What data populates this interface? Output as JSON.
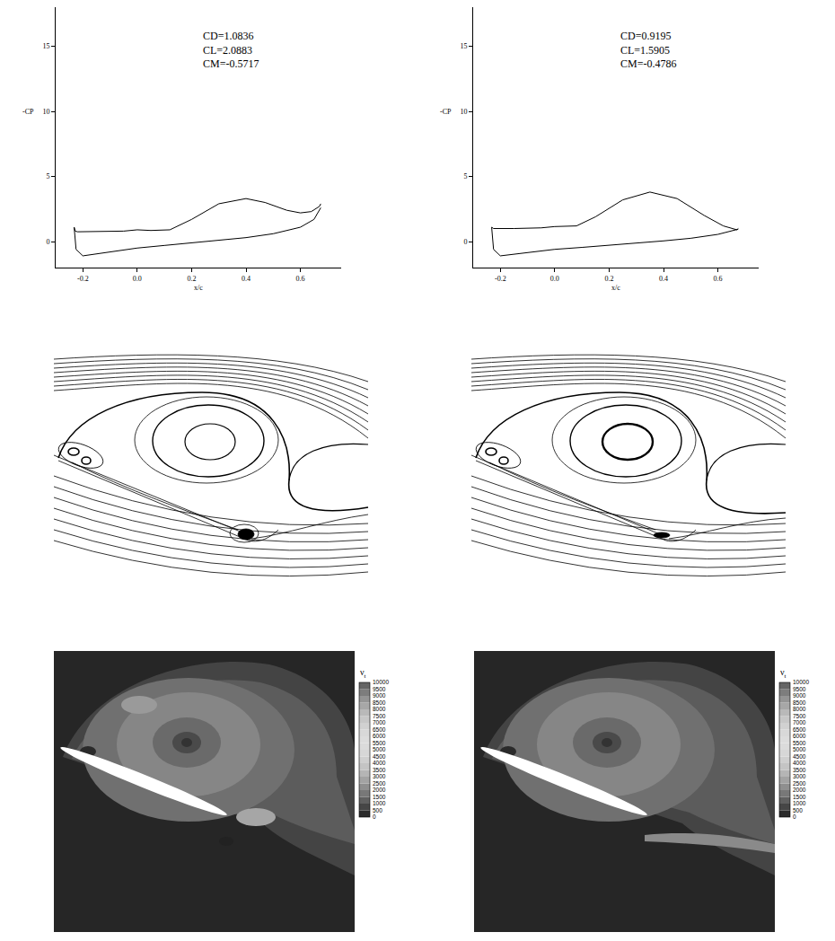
{
  "chart_data": [
    {
      "type": "line",
      "x_label": "x/c",
      "y_label": "-CP",
      "annotations": [
        "CD=1.0836",
        "CL=2.0883",
        "CM=-0.5717"
      ],
      "xlim": [
        -0.3,
        0.75
      ],
      "xticks": [
        -0.2,
        {
          "value": 0,
          "label": "0.0"
        },
        0.2,
        0.4,
        0.6
      ],
      "ylim": [
        -2,
        18
      ],
      "yticks": [
        0,
        5,
        10,
        15
      ],
      "grid": false,
      "series": [
        {
          "color": "#000000",
          "x": [
            -0.232,
            -0.228,
            -0.22,
            -0.15,
            -0.05,
            0.0,
            0.05,
            0.12,
            0.2,
            0.3,
            0.4,
            0.47,
            0.55,
            0.6,
            0.64,
            0.67,
            0.675
          ],
          "values": [
            1.1,
            0.8,
            0.75,
            0.75,
            0.8,
            0.9,
            0.85,
            0.9,
            1.7,
            2.9,
            3.3,
            3.0,
            2.4,
            2.2,
            2.3,
            2.7,
            2.9
          ]
        },
        {
          "color": "#000000",
          "x": [
            -0.232,
            -0.225,
            -0.2,
            -0.1,
            0.0,
            0.1,
            0.2,
            0.3,
            0.4,
            0.5,
            0.6,
            0.65,
            0.675
          ],
          "values": [
            1.1,
            -0.6,
            -1.1,
            -0.8,
            -0.5,
            -0.3,
            -0.1,
            0.1,
            0.3,
            0.6,
            1.1,
            1.7,
            2.6
          ]
        }
      ]
    },
    {
      "type": "line",
      "x_label": "x/c",
      "y_label": "-CP",
      "annotations": [
        "CD=0.9195",
        "CL=1.5905",
        "CM=-0.4786"
      ],
      "xlim": [
        -0.3,
        0.75
      ],
      "xticks": [
        -0.2,
        {
          "value": 0,
          "label": "0.0"
        },
        0.2,
        0.4,
        0.6
      ],
      "ylim": [
        -2,
        18
      ],
      "yticks": [
        0,
        5,
        10,
        15
      ],
      "grid": false,
      "series": [
        {
          "color": "#000000",
          "x": [
            -0.232,
            -0.225,
            -0.15,
            -0.05,
            0.0,
            0.08,
            0.15,
            0.25,
            0.35,
            0.45,
            0.55,
            0.62,
            0.67,
            0.675
          ],
          "values": [
            1.1,
            1.0,
            1.0,
            1.05,
            1.15,
            1.2,
            1.9,
            3.2,
            3.8,
            3.3,
            2.0,
            1.2,
            0.9,
            1.0
          ]
        },
        {
          "color": "#000000",
          "x": [
            -0.232,
            -0.225,
            -0.2,
            -0.1,
            0.0,
            0.1,
            0.2,
            0.3,
            0.4,
            0.5,
            0.6,
            0.675
          ],
          "values": [
            1.1,
            -0.6,
            -1.1,
            -0.85,
            -0.6,
            -0.45,
            -0.3,
            -0.15,
            0.05,
            0.25,
            0.55,
            0.95
          ]
        }
      ]
    }
  ],
  "colorbars": [
    {
      "symbol": "ν",
      "subscript": "t",
      "range": [
        0,
        10000
      ],
      "ticks": [
        0,
        500,
        1000,
        1500,
        2000,
        2500,
        3000,
        3500,
        4000,
        4500,
        5000,
        5500,
        6000,
        6500,
        7000,
        7500,
        8000,
        8500,
        9000,
        9500,
        10000
      ]
    },
    {
      "symbol": "ν",
      "subscript": "t",
      "range": [
        0,
        10000
      ],
      "ticks": [
        0,
        500,
        1000,
        1500,
        2000,
        2500,
        3000,
        3500,
        4000,
        4500,
        5000,
        5500,
        6000,
        6500,
        7000,
        7500,
        8000,
        8500,
        9000,
        9500,
        10000
      ]
    }
  ]
}
